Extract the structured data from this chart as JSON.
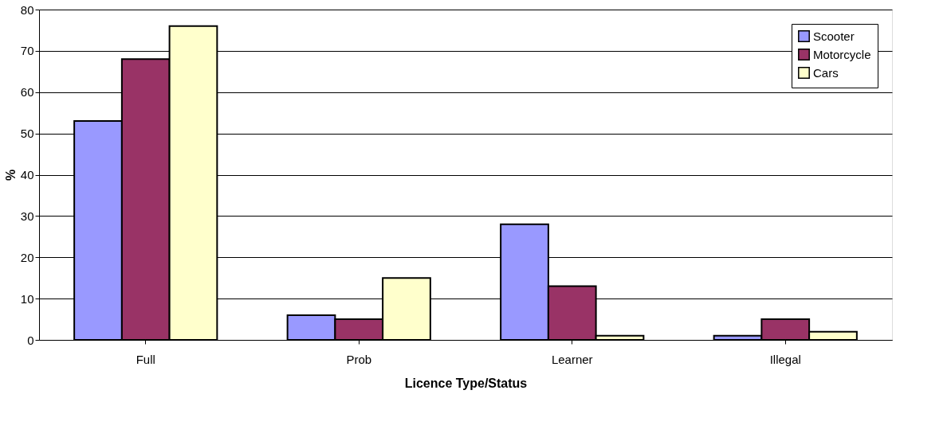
{
  "chart_data": {
    "type": "bar",
    "xlabel": "Licence Type/Status",
    "ylabel": "%",
    "categories": [
      "Full",
      "Prob",
      "Learner",
      "Illegal"
    ],
    "series": [
      {
        "name": "Scooter",
        "color": "#9999ff",
        "values": [
          53,
          6,
          28,
          1
        ]
      },
      {
        "name": "Motorcycle",
        "color": "#993366",
        "values": [
          68,
          5,
          13,
          5
        ]
      },
      {
        "name": "Cars",
        "color": "#ffffcc",
        "values": [
          76,
          15,
          1,
          2
        ]
      }
    ],
    "ylim": [
      0,
      80
    ],
    "yticks": [
      0,
      10,
      20,
      30,
      40,
      50,
      60,
      70,
      80
    ],
    "grid": "y",
    "legend": "top right"
  }
}
